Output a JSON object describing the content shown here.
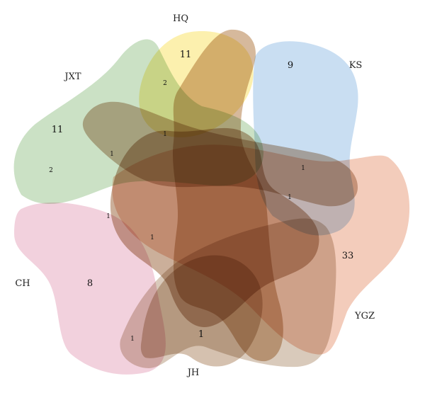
{
  "sets": [
    {
      "id": "HQ",
      "label": "HQ",
      "color": "#fbec9a"
    },
    {
      "id": "KS",
      "label": "KS",
      "color": "#b7d3ee"
    },
    {
      "id": "JXT",
      "label": "JXT",
      "color": "#b9d7b1"
    },
    {
      "id": "CH",
      "label": "CH",
      "color": "#eec2d2"
    },
    {
      "id": "YGZ",
      "label": "YGZ",
      "color": "#efbba4"
    },
    {
      "id": "JH",
      "label": "JH",
      "color": "#cdb8a4"
    }
  ],
  "petal_colors": {
    "hq_brown": "#c9a27a",
    "jxt_brown": "#bf9f84",
    "central_brown": "#b58d6f"
  },
  "regions": [
    {
      "id": "hq_only",
      "sets": [
        "HQ"
      ],
      "count": "11"
    },
    {
      "id": "ks_only",
      "sets": [
        "KS"
      ],
      "count": "9"
    },
    {
      "id": "jxt_only",
      "sets": [
        "JXT"
      ],
      "count": "11"
    },
    {
      "id": "ch_only",
      "sets": [
        "CH"
      ],
      "count": "8"
    },
    {
      "id": "ygz_only",
      "sets": [
        "YGZ"
      ],
      "count": "33"
    },
    {
      "id": "jh_only",
      "sets": [
        "JH"
      ],
      "count": "1"
    },
    {
      "id": "hq_jxt",
      "sets": [
        "HQ",
        "JXT"
      ],
      "count": "2"
    },
    {
      "id": "jxt_ch",
      "sets": [
        "JXT",
        "CH"
      ],
      "count": "2"
    },
    {
      "id": "r_1a",
      "sets": [],
      "count": "1"
    },
    {
      "id": "r_1b",
      "sets": [],
      "count": "1"
    },
    {
      "id": "r_1c",
      "sets": [],
      "count": "1"
    },
    {
      "id": "r_1d",
      "sets": [],
      "count": "1"
    },
    {
      "id": "r_1e",
      "sets": [],
      "count": "1"
    },
    {
      "id": "r_1f",
      "sets": [],
      "count": "1"
    },
    {
      "id": "r_1g",
      "sets": [],
      "count": "1"
    }
  ]
}
